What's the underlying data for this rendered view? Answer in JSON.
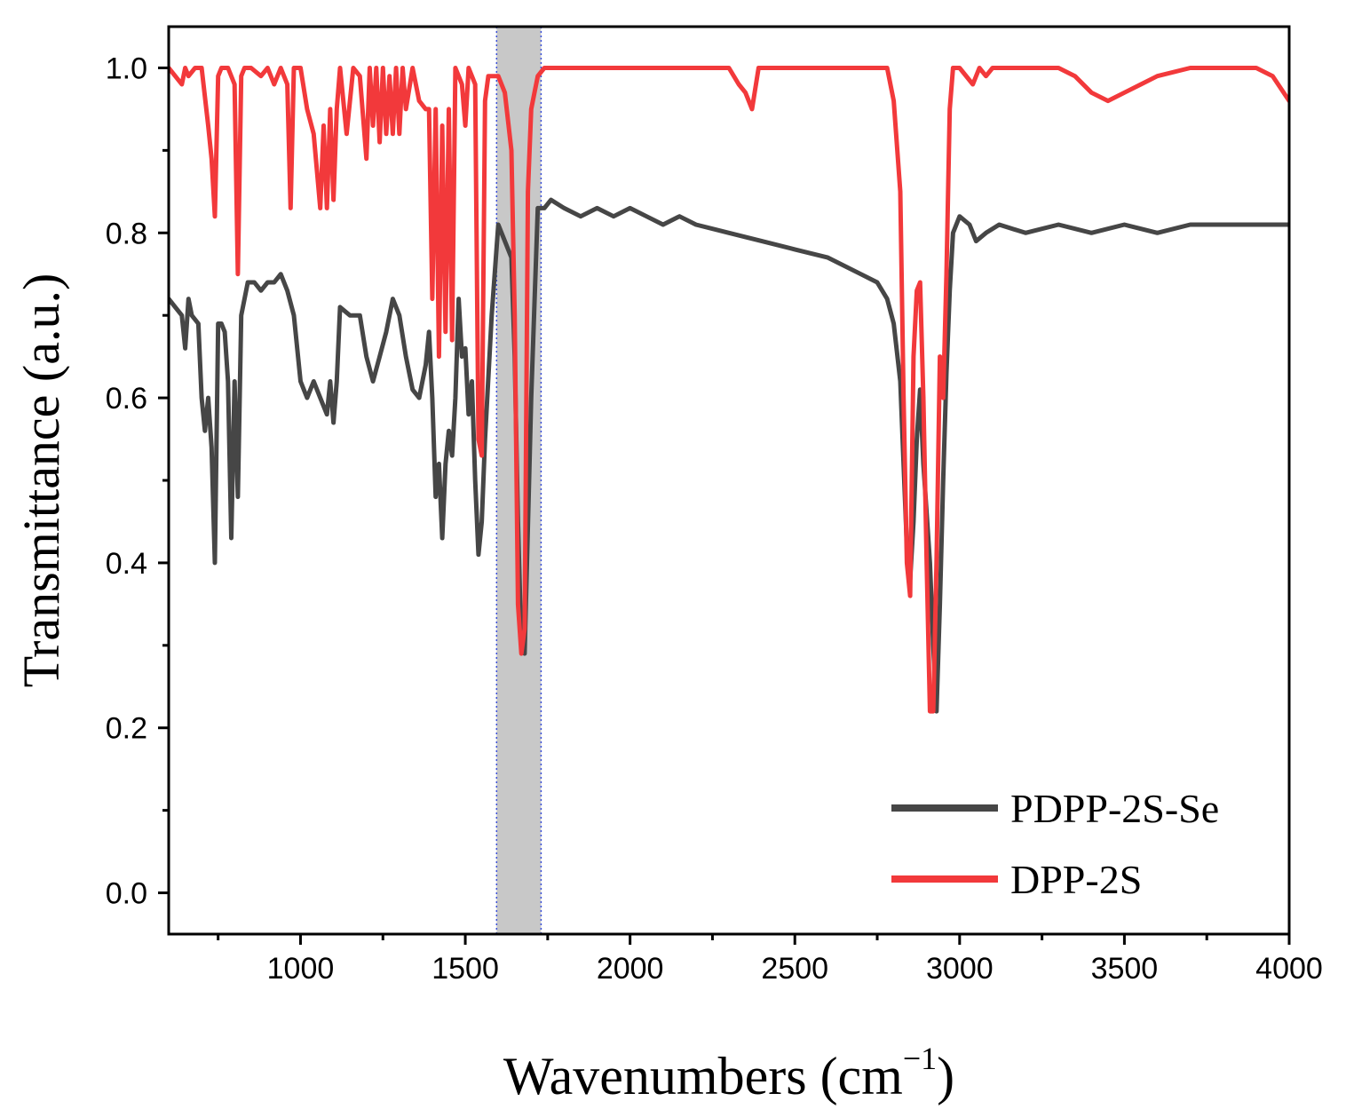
{
  "chart_data": {
    "type": "line",
    "title": "",
    "xlabel": "Wavenumbers (cm",
    "xlabel_superscript": "−1",
    "xlabel_close": ")",
    "ylabel": "Transmittance (a.u.)",
    "xlim": [
      600,
      4000
    ],
    "ylim": [
      -0.05,
      1.05
    ],
    "xticks": [
      1000,
      1500,
      2000,
      2500,
      3000,
      3500,
      4000
    ],
    "xtick_labels": [
      "1000",
      "1500",
      "2000",
      "2500",
      "3000",
      "3500",
      "4000"
    ],
    "yticks": [
      0.0,
      0.2,
      0.4,
      0.6,
      0.8,
      1.0
    ],
    "ytick_labels": [
      "0.0",
      "0.2",
      "0.4",
      "0.6",
      "0.8",
      "1.0"
    ],
    "highlight_band": {
      "x_start": 1595,
      "x_end": 1730,
      "color": "#c8c8c8",
      "edge_color": "#3a4fd8"
    },
    "legend_position": "bottom-right",
    "series": [
      {
        "name": "PDPP-2S-Se",
        "color": "#464646",
        "x": [
          600,
          620,
          640,
          650,
          660,
          670,
          690,
          700,
          710,
          720,
          730,
          740,
          750,
          760,
          770,
          780,
          790,
          800,
          810,
          820,
          840,
          860,
          880,
          900,
          920,
          940,
          960,
          980,
          1000,
          1020,
          1040,
          1060,
          1080,
          1090,
          1100,
          1110,
          1120,
          1150,
          1180,
          1200,
          1220,
          1240,
          1260,
          1280,
          1300,
          1320,
          1340,
          1360,
          1380,
          1390,
          1400,
          1410,
          1420,
          1430,
          1440,
          1450,
          1460,
          1470,
          1480,
          1490,
          1500,
          1510,
          1520,
          1530,
          1540,
          1550,
          1560,
          1580,
          1600,
          1620,
          1640,
          1650,
          1660,
          1670,
          1680,
          1700,
          1720,
          1740,
          1760,
          1800,
          1850,
          1900,
          1950,
          2000,
          2050,
          2100,
          2150,
          2200,
          2300,
          2400,
          2500,
          2600,
          2700,
          2750,
          2780,
          2800,
          2820,
          2830,
          2840,
          2850,
          2860,
          2870,
          2880,
          2890,
          2900,
          2910,
          2920,
          2930,
          2940,
          2950,
          2960,
          2970,
          2980,
          3000,
          3030,
          3050,
          3080,
          3120,
          3200,
          3300,
          3400,
          3500,
          3600,
          3700,
          3800,
          3900,
          4000
        ],
        "y": [
          0.72,
          0.71,
          0.7,
          0.66,
          0.72,
          0.7,
          0.69,
          0.6,
          0.56,
          0.6,
          0.54,
          0.4,
          0.69,
          0.69,
          0.68,
          0.62,
          0.43,
          0.62,
          0.48,
          0.7,
          0.74,
          0.74,
          0.73,
          0.74,
          0.74,
          0.75,
          0.73,
          0.7,
          0.62,
          0.6,
          0.62,
          0.6,
          0.58,
          0.62,
          0.57,
          0.62,
          0.71,
          0.7,
          0.7,
          0.65,
          0.62,
          0.65,
          0.68,
          0.72,
          0.7,
          0.65,
          0.61,
          0.6,
          0.64,
          0.68,
          0.6,
          0.48,
          0.52,
          0.43,
          0.52,
          0.56,
          0.53,
          0.6,
          0.72,
          0.65,
          0.66,
          0.58,
          0.62,
          0.5,
          0.41,
          0.45,
          0.55,
          0.7,
          0.81,
          0.79,
          0.77,
          0.65,
          0.45,
          0.3,
          0.29,
          0.6,
          0.83,
          0.83,
          0.84,
          0.83,
          0.82,
          0.83,
          0.82,
          0.83,
          0.82,
          0.81,
          0.82,
          0.81,
          0.8,
          0.79,
          0.78,
          0.77,
          0.75,
          0.74,
          0.72,
          0.69,
          0.62,
          0.52,
          0.42,
          0.38,
          0.45,
          0.55,
          0.61,
          0.52,
          0.46,
          0.4,
          0.3,
          0.22,
          0.35,
          0.5,
          0.63,
          0.73,
          0.8,
          0.82,
          0.81,
          0.79,
          0.8,
          0.81,
          0.8,
          0.81,
          0.8,
          0.81,
          0.8,
          0.81,
          0.81,
          0.81,
          0.81
        ]
      },
      {
        "name": "DPP-2S",
        "color": "#f2393b",
        "x": [
          600,
          620,
          640,
          650,
          660,
          680,
          700,
          720,
          730,
          740,
          750,
          760,
          780,
          800,
          810,
          820,
          830,
          850,
          880,
          900,
          920,
          940,
          960,
          970,
          980,
          1000,
          1020,
          1040,
          1060,
          1070,
          1080,
          1090,
          1100,
          1110,
          1120,
          1140,
          1160,
          1180,
          1200,
          1210,
          1220,
          1230,
          1240,
          1250,
          1260,
          1270,
          1280,
          1290,
          1300,
          1310,
          1320,
          1340,
          1360,
          1380,
          1390,
          1400,
          1410,
          1420,
          1430,
          1440,
          1450,
          1460,
          1470,
          1480,
          1490,
          1500,
          1510,
          1520,
          1530,
          1540,
          1550,
          1560,
          1570,
          1580,
          1600,
          1620,
          1640,
          1650,
          1660,
          1670,
          1680,
          1690,
          1700,
          1710,
          1720,
          1740,
          1800,
          1850,
          1900,
          2000,
          2100,
          2200,
          2300,
          2330,
          2350,
          2370,
          2390,
          2420,
          2500,
          2600,
          2700,
          2780,
          2800,
          2820,
          2830,
          2840,
          2850,
          2860,
          2870,
          2880,
          2890,
          2900,
          2910,
          2920,
          2930,
          2940,
          2950,
          2960,
          2970,
          2980,
          3000,
          3040,
          3060,
          3080,
          3100,
          3200,
          3300,
          3350,
          3400,
          3450,
          3500,
          3550,
          3600,
          3700,
          3800,
          3850,
          3900,
          3950,
          4000
        ],
        "y": [
          1.0,
          0.99,
          0.98,
          1.0,
          0.99,
          1.0,
          1.0,
          0.93,
          0.89,
          0.82,
          0.99,
          1.0,
          1.0,
          0.98,
          0.75,
          0.99,
          1.0,
          1.0,
          0.99,
          1.0,
          0.98,
          1.0,
          0.98,
          0.83,
          1.0,
          1.0,
          0.95,
          0.92,
          0.83,
          0.93,
          0.83,
          0.95,
          0.84,
          0.95,
          1.0,
          0.92,
          1.0,
          0.99,
          0.89,
          1.0,
          0.93,
          1.0,
          0.91,
          1.0,
          0.92,
          0.99,
          0.92,
          1.0,
          0.92,
          1.0,
          0.95,
          1.0,
          0.96,
          0.95,
          0.95,
          0.72,
          0.95,
          0.65,
          0.93,
          0.68,
          0.95,
          0.67,
          1.0,
          0.99,
          0.98,
          0.93,
          1.0,
          0.99,
          0.98,
          0.55,
          0.53,
          0.96,
          0.99,
          0.99,
          0.99,
          0.97,
          0.9,
          0.7,
          0.35,
          0.29,
          0.32,
          0.85,
          0.95,
          0.97,
          0.99,
          1.0,
          1.0,
          1.0,
          1.0,
          1.0,
          1.0,
          1.0,
          1.0,
          0.98,
          0.97,
          0.95,
          1.0,
          1.0,
          1.0,
          1.0,
          1.0,
          1.0,
          0.96,
          0.85,
          0.6,
          0.4,
          0.36,
          0.65,
          0.73,
          0.74,
          0.6,
          0.4,
          0.22,
          0.22,
          0.4,
          0.65,
          0.6,
          0.75,
          0.95,
          1.0,
          1.0,
          0.98,
          1.0,
          0.99,
          1.0,
          1.0,
          1.0,
          0.99,
          0.97,
          0.96,
          0.97,
          0.98,
          0.99,
          1.0,
          1.0,
          1.0,
          1.0,
          0.99,
          0.96
        ]
      }
    ]
  }
}
